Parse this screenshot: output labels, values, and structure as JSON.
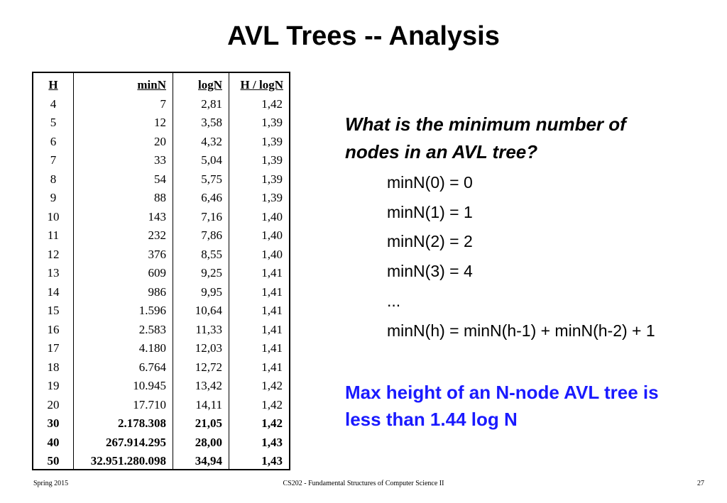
{
  "slide": {
    "title": "AVL Trees -- Analysis"
  },
  "table": {
    "headers": [
      "H",
      "minN",
      "logN",
      "H / logN"
    ],
    "rows": [
      [
        "4",
        "7",
        "2,81",
        "1,42"
      ],
      [
        "5",
        "12",
        "3,58",
        "1,39"
      ],
      [
        "6",
        "20",
        "4,32",
        "1,39"
      ],
      [
        "7",
        "33",
        "5,04",
        "1,39"
      ],
      [
        "8",
        "54",
        "5,75",
        "1,39"
      ],
      [
        "9",
        "88",
        "6,46",
        "1,39"
      ],
      [
        "10",
        "143",
        "7,16",
        "1,40"
      ],
      [
        "11",
        "232",
        "7,86",
        "1,40"
      ],
      [
        "12",
        "376",
        "8,55",
        "1,40"
      ],
      [
        "13",
        "609",
        "9,25",
        "1,41"
      ],
      [
        "14",
        "986",
        "9,95",
        "1,41"
      ],
      [
        "15",
        "1.596",
        "10,64",
        "1,41"
      ],
      [
        "16",
        "2.583",
        "11,33",
        "1,41"
      ],
      [
        "17",
        "4.180",
        "12,03",
        "1,41"
      ],
      [
        "18",
        "6.764",
        "12,72",
        "1,41"
      ],
      [
        "19",
        "10.945",
        "13,42",
        "1,42"
      ],
      [
        "20",
        "17.710",
        "14,11",
        "1,42"
      ],
      [
        "30",
        "2.178.308",
        "21,05",
        "1,42"
      ],
      [
        "40",
        "267.914.295",
        "28,00",
        "1,43"
      ],
      [
        "50",
        "32.951.280.098",
        "34,94",
        "1,43"
      ]
    ],
    "bold_rows": [
      17,
      18,
      19
    ]
  },
  "question": {
    "line1": "What is the minimum number of",
    "line2": "nodes in an AVL tree?"
  },
  "formulas": [
    "minN(0) = 0",
    "minN(1) = 1",
    "minN(2) = 2",
    "minN(3) = 4",
    "...",
    "minN(h) = minN(h-1) + minN(h-2) + 1"
  ],
  "conclusion": {
    "line1": "Max height of an N-node AVL tree is",
    "line2": "less than 1.44 log N",
    "color": "#1a1aff"
  },
  "footer": {
    "left": "Spring 2015",
    "center": "CS202 - Fundamental Structures of Computer Science II",
    "right": "27"
  }
}
